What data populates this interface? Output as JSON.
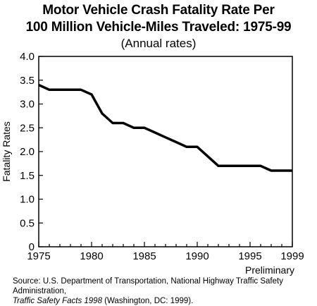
{
  "chart_data": {
    "type": "line",
    "title_line1": "Motor Vehicle Crash Fatality Rate Per",
    "title_line2": "100 Million Vehicle-Miles Traveled: 1975-99",
    "subtitle": "(Annual rates)",
    "ylabel": "Fatality Rates",
    "xlabel_note": "Preliminary",
    "xlim": [
      1975,
      1999
    ],
    "ylim": [
      0,
      4.0
    ],
    "x_ticks": [
      "1975",
      "1980",
      "1985",
      "1990",
      "1995",
      "1999"
    ],
    "x_tick_values": [
      1975,
      1980,
      1985,
      1990,
      1995,
      1999
    ],
    "y_ticks": [
      "0",
      "0.5",
      "1.0",
      "1.5",
      "2.0",
      "2.5",
      "3.0",
      "3.5",
      "4.0"
    ],
    "y_tick_values": [
      0,
      0.5,
      1.0,
      1.5,
      2.0,
      2.5,
      3.0,
      3.5,
      4.0
    ],
    "grid": false,
    "series": [
      {
        "x": [
          1975,
          1976,
          1977,
          1978,
          1979,
          1980,
          1981,
          1982,
          1983,
          1984,
          1985,
          1986,
          1987,
          1988,
          1989,
          1990,
          1991,
          1992,
          1993,
          1994,
          1995,
          1996,
          1997,
          1998,
          1999
        ],
        "values": [
          3.4,
          3.3,
          3.3,
          3.3,
          3.3,
          3.2,
          2.8,
          2.6,
          2.6,
          2.5,
          2.5,
          2.4,
          2.3,
          2.2,
          2.1,
          2.1,
          1.9,
          1.7,
          1.7,
          1.7,
          1.7,
          1.7,
          1.6,
          1.6,
          1.6
        ]
      }
    ],
    "line_color": "#000000"
  },
  "source": {
    "prefix": "Source: U.S. Department of Transportation, National Highway Traffic Safety Administration,",
    "italic": "Traffic Safety Facts 1998",
    "suffix": " (Washington, DC: 1999)."
  }
}
